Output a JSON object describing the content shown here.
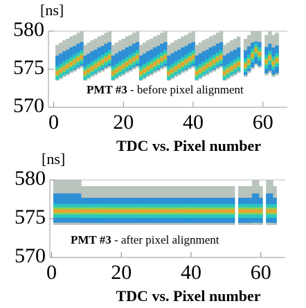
{
  "chart_data": [
    {
      "type": "tdc-band",
      "unit_label": "[ns]",
      "xlabel": "TDC vs. Pixel number",
      "annotation_bold": "PMT #3",
      "annotation_rest": " - before pixel alignment",
      "xlim": [
        -1.5,
        67
      ],
      "xticks": [
        0,
        20,
        40,
        60
      ],
      "ylim": [
        570,
        580
      ],
      "yticks": [
        570,
        575,
        580
      ],
      "x": [
        1,
        2,
        3,
        4,
        5,
        6,
        7,
        8,
        9,
        10,
        11,
        12,
        13,
        14,
        15,
        16,
        17,
        18,
        19,
        20,
        21,
        22,
        23,
        24,
        25,
        26,
        27,
        28,
        29,
        30,
        31,
        32,
        33,
        34,
        35,
        36,
        37,
        38,
        39,
        40,
        41,
        42,
        43,
        44,
        45,
        46,
        47,
        48,
        49,
        50,
        51,
        52,
        53,
        54,
        55,
        56,
        57,
        58,
        59,
        60,
        61,
        62,
        63,
        64
      ],
      "peak": [
        574.5,
        574.8,
        575.1,
        575.4,
        575.7,
        576.0,
        576.3,
        576.6,
        574.5,
        574.8,
        575.1,
        575.4,
        575.7,
        576.0,
        576.3,
        576.6,
        574.5,
        574.8,
        575.1,
        575.4,
        575.7,
        576.0,
        576.3,
        576.6,
        574.5,
        574.8,
        575.1,
        575.4,
        575.7,
        576.0,
        576.3,
        576.6,
        574.5,
        574.8,
        575.1,
        575.4,
        575.7,
        576.0,
        576.3,
        576.6,
        574.5,
        574.8,
        575.1,
        575.4,
        575.7,
        576.0,
        576.3,
        576.6,
        574.5,
        574.8,
        575.1,
        575.4,
        575.7,
        null,
        575.5,
        576.0,
        576.8,
        577.5,
        577.0,
        null,
        576.0,
        576.5,
        575.8,
        576.2
      ],
      "low": [
        573.5,
        573.7,
        574.0,
        574.2,
        574.5,
        574.7,
        575.0,
        575.2,
        573.5,
        573.7,
        574.0,
        574.2,
        574.5,
        574.7,
        575.0,
        575.2,
        573.5,
        573.7,
        574.0,
        574.2,
        574.5,
        574.7,
        575.0,
        575.2,
        573.5,
        573.7,
        574.0,
        574.2,
        574.5,
        574.7,
        575.0,
        575.2,
        573.5,
        573.7,
        574.0,
        574.2,
        574.5,
        574.7,
        575.0,
        575.2,
        573.5,
        573.7,
        574.0,
        574.2,
        574.5,
        574.7,
        575.0,
        575.2,
        573.5,
        573.7,
        574.0,
        574.2,
        574.5,
        null,
        574.0,
        574.5,
        575.0,
        575.5,
        575.2,
        null,
        574.2,
        574.5,
        574.0,
        574.2
      ],
      "high": [
        578.2,
        578.5,
        578.8,
        579.0,
        579.3,
        579.5,
        579.8,
        580,
        578.2,
        578.5,
        578.8,
        579.0,
        579.3,
        579.5,
        579.8,
        580,
        578.2,
        578.5,
        578.8,
        579.0,
        579.3,
        579.5,
        579.8,
        580,
        578.2,
        578.5,
        578.8,
        579.0,
        579.3,
        579.5,
        579.8,
        580,
        578.2,
        578.5,
        578.8,
        579.0,
        579.3,
        579.5,
        579.8,
        580,
        578.2,
        578.5,
        578.8,
        579.0,
        579.3,
        579.5,
        579.8,
        580,
        578.2,
        578.5,
        578.8,
        579.0,
        579.3,
        null,
        579.0,
        579.5,
        580,
        580,
        580,
        null,
        579.5,
        580,
        579.5,
        579.8
      ]
    },
    {
      "type": "tdc-band",
      "unit_label": "[ns]",
      "xlabel": "TDC vs. Pixel number",
      "annotation_bold": "PMT #3",
      "annotation_rest": " - after pixel alignment",
      "xlim": [
        -0.5,
        67
      ],
      "xticks": [
        0,
        20,
        40,
        60
      ],
      "ylim": [
        570,
        580
      ],
      "yticks": [
        570,
        575,
        580
      ],
      "x": [
        1,
        2,
        3,
        4,
        5,
        6,
        7,
        8,
        9,
        10,
        11,
        12,
        13,
        14,
        15,
        16,
        17,
        18,
        19,
        20,
        21,
        22,
        23,
        24,
        25,
        26,
        27,
        28,
        29,
        30,
        31,
        32,
        33,
        34,
        35,
        36,
        37,
        38,
        39,
        40,
        41,
        42,
        43,
        44,
        45,
        46,
        47,
        48,
        49,
        50,
        51,
        52,
        53,
        54,
        55,
        56,
        57,
        58,
        59,
        60,
        61,
        62,
        63,
        64
      ],
      "peak": [
        576,
        576,
        576,
        576,
        576,
        576,
        576,
        576,
        576,
        576,
        576,
        576,
        576,
        576,
        576,
        576,
        576,
        576,
        576,
        576,
        576,
        576,
        576,
        576,
        576,
        576,
        576,
        576,
        576,
        576,
        576,
        576,
        576,
        576,
        576,
        576,
        576,
        576,
        576,
        576,
        576,
        576,
        576,
        576,
        576,
        576,
        576,
        576,
        576,
        576,
        576,
        576,
        null,
        576,
        576,
        576,
        576,
        576,
        576,
        576,
        null,
        576,
        576,
        576
      ],
      "low": [
        574.2,
        574.2,
        574.2,
        574.2,
        574.2,
        574.2,
        574.2,
        574.2,
        574.2,
        574.2,
        574.2,
        574.2,
        574.2,
        574.2,
        574.2,
        574.2,
        574.2,
        574.2,
        574.2,
        574.2,
        574.2,
        574.2,
        574.2,
        574.2,
        574.2,
        574.2,
        574.2,
        574.2,
        574.2,
        574.2,
        574.2,
        574.2,
        574.2,
        574.2,
        574.2,
        574.2,
        574.2,
        574.2,
        574.2,
        574.2,
        574.2,
        574.2,
        574.2,
        574.2,
        574.2,
        574.2,
        574.2,
        574.2,
        574.2,
        574.2,
        574.2,
        574.2,
        null,
        574.2,
        574.2,
        574.2,
        574.2,
        574.2,
        574.2,
        574.2,
        null,
        574.2,
        574.2,
        574.2
      ],
      "high": [
        580,
        580,
        580,
        580,
        580,
        580,
        580,
        580,
        579.2,
        579.2,
        579.2,
        579.2,
        579.2,
        579.2,
        579.2,
        579.2,
        579.2,
        579.2,
        579.2,
        579.2,
        579.2,
        579.2,
        579.2,
        579.2,
        579.2,
        579.2,
        579.2,
        579.2,
        579.2,
        579.2,
        579.2,
        579.2,
        579.2,
        579.2,
        579.2,
        579.2,
        579.2,
        579.2,
        579.2,
        579.2,
        579.2,
        579.2,
        579.2,
        579.2,
        579.2,
        579.2,
        579.2,
        579.2,
        579.2,
        579.2,
        579.2,
        579.2,
        null,
        579.2,
        579.2,
        579.2,
        579.2,
        580,
        580,
        579.2,
        null,
        580,
        580,
        579.2
      ]
    }
  ]
}
